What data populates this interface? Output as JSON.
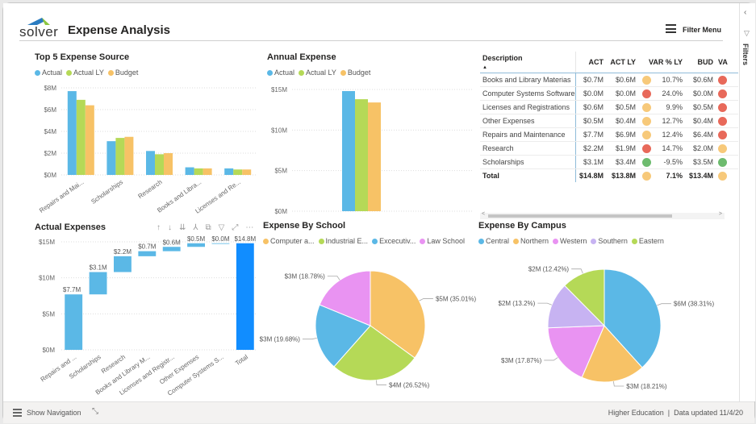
{
  "header": {
    "logo_text": "solver",
    "title": "Expense Analysis",
    "filter_menu_label": "Filter Menu"
  },
  "right_pane": {
    "label": "Filters",
    "collapse_icon": "chevron-left-icon",
    "filter_icon": "funnel-icon"
  },
  "footer": {
    "show_navigation_label": "Show Navigation",
    "status_left": "Higher Education",
    "status_right": "Data updated 11/4/20"
  },
  "colors": {
    "actual": "#5BB8E6",
    "actual_ly": "#B5D957",
    "budget": "#F7C266",
    "total": "#118DFF",
    "kpi_red": "#E8695A",
    "kpi_yellow": "#F7C97A",
    "kpi_green": "#6DBB6E"
  },
  "waterfall_toolbar_icons": [
    "arrow-up-icon",
    "arrow-down-icon",
    "double-arrow-down-icon",
    "expand-hierarchy-icon",
    "copy-icon",
    "filter-icon",
    "focus-mode-icon",
    "more-options-icon"
  ],
  "table": {
    "columns": [
      "Description",
      "ACT",
      "ACT LY",
      "VAR % LY",
      "BUD",
      "VA"
    ],
    "sort_indicator": "▲",
    "rows": [
      {
        "desc": "Books and Library Materias",
        "act": "$0.7M",
        "act_ly": "$0.6M",
        "var_kpi": "yellow",
        "var": "10.7%",
        "bud": "$0.6M",
        "va_kpi": "red"
      },
      {
        "desc": "Computer Systems Software",
        "act": "$0.0M",
        "act_ly": "$0.0M",
        "var_kpi": "red",
        "var": "24.0%",
        "bud": "$0.0M",
        "va_kpi": "red"
      },
      {
        "desc": "Licenses and Registrations",
        "act": "$0.6M",
        "act_ly": "$0.5M",
        "var_kpi": "yellow",
        "var": "9.9%",
        "bud": "$0.5M",
        "va_kpi": "red"
      },
      {
        "desc": "Other Expenses",
        "act": "$0.5M",
        "act_ly": "$0.4M",
        "var_kpi": "yellow",
        "var": "12.7%",
        "bud": "$0.4M",
        "va_kpi": "red"
      },
      {
        "desc": "Repairs and Maintenance",
        "act": "$7.7M",
        "act_ly": "$6.9M",
        "var_kpi": "yellow",
        "var": "12.4%",
        "bud": "$6.4M",
        "va_kpi": "red"
      },
      {
        "desc": "Research",
        "act": "$2.2M",
        "act_ly": "$1.9M",
        "var_kpi": "red",
        "var": "14.7%",
        "bud": "$2.0M",
        "va_kpi": "yellow"
      },
      {
        "desc": "Scholarships",
        "act": "$3.1M",
        "act_ly": "$3.4M",
        "var_kpi": "green",
        "var": "-9.5%",
        "bud": "$3.5M",
        "va_kpi": "green"
      }
    ],
    "total": {
      "desc": "Total",
      "act": "$14.8M",
      "act_ly": "$13.8M",
      "var_kpi": "yellow",
      "var": "7.1%",
      "bud": "$13.4M",
      "va_kpi": "yellow"
    }
  },
  "chart_data": [
    {
      "id": "top5",
      "type": "bar",
      "title": "Top 5 Expense Source",
      "legend": [
        "Actual",
        "Actual LY",
        "Budget"
      ],
      "legend_position": "top-left",
      "categories": [
        "Repairs and Mai...",
        "Scholarships",
        "Research",
        "Books and Libra...",
        "Licenses and Re..."
      ],
      "series": [
        {
          "name": "Actual",
          "values": [
            7.7,
            3.1,
            2.2,
            0.7,
            0.6
          ]
        },
        {
          "name": "Actual LY",
          "values": [
            6.9,
            3.4,
            1.9,
            0.6,
            0.5
          ]
        },
        {
          "name": "Budget",
          "values": [
            6.4,
            3.5,
            2.0,
            0.6,
            0.5
          ]
        }
      ],
      "yticks": [
        "$0M",
        "$2M",
        "$4M",
        "$6M",
        "$8M"
      ],
      "ylim": [
        0,
        8
      ],
      "grid": true
    },
    {
      "id": "annual",
      "type": "bar",
      "title": "Annual Expense",
      "legend": [
        "Actual",
        "Actual LY",
        "Budget"
      ],
      "legend_position": "top-left",
      "categories": [
        ""
      ],
      "series": [
        {
          "name": "Actual",
          "values": [
            14.8
          ]
        },
        {
          "name": "Actual LY",
          "values": [
            13.8
          ]
        },
        {
          "name": "Budget",
          "values": [
            13.4
          ]
        }
      ],
      "yticks": [
        "$0M",
        "$5M",
        "$10M",
        "$15M"
      ],
      "ylim": [
        0,
        15
      ],
      "grid": true
    },
    {
      "id": "waterfall",
      "type": "bar",
      "subtype": "waterfall",
      "title": "Actual Expenses",
      "categories": [
        "Repairs and ...",
        "Scholarships",
        "Research",
        "Books and Library M...",
        "Licenses and Registr...",
        "Other Expenses",
        "Computer Systems S...",
        "Total"
      ],
      "values": [
        7.7,
        3.1,
        2.2,
        0.7,
        0.6,
        0.5,
        0.0,
        14.8
      ],
      "labels": [
        "$7.7M",
        "$3.1M",
        "$2.2M",
        "$0.7M",
        "$0.6M",
        "$0.5M",
        "$0.0M",
        "$14.8M"
      ],
      "yticks": [
        "$0M",
        "$5M",
        "$10M",
        "$15M"
      ],
      "ylim": [
        0,
        15
      ],
      "grid": true
    },
    {
      "id": "school",
      "type": "pie",
      "title": "Expense By School",
      "legend": [
        "Computer a...",
        "Industrial E...",
        "Excecutiv...",
        "Law School"
      ],
      "legend_position": "top-left",
      "slices": [
        {
          "name": "Computer a...",
          "value": 35.01,
          "label": "$5M (35.01%)",
          "color": "#F7C266"
        },
        {
          "name": "Industrial E...",
          "value": 26.52,
          "label": "$4M (26.52%)",
          "color": "#B5D957"
        },
        {
          "name": "Excecutiv...",
          "value": 19.68,
          "label": "$3M (19.68%)",
          "color": "#5BB8E6"
        },
        {
          "name": "Law School",
          "value": 18.78,
          "label": "$3M (18.78%)",
          "color": "#E993F2"
        }
      ]
    },
    {
      "id": "campus",
      "type": "pie",
      "title": "Expense By Campus",
      "legend": [
        "Central",
        "Northern",
        "Western",
        "Southern",
        "Eastern"
      ],
      "legend_position": "top-left",
      "slices": [
        {
          "name": "Central",
          "value": 38.31,
          "label": "$6M (38.31%)",
          "color": "#5BB8E6"
        },
        {
          "name": "Northern",
          "value": 18.21,
          "label": "$3M (18.21%)",
          "color": "#F7C266"
        },
        {
          "name": "Western",
          "value": 17.87,
          "label": "$3M (17.87%)",
          "color": "#E993F2"
        },
        {
          "name": "Southern",
          "value": 13.2,
          "label": "$2M (13.2%)",
          "color": "#C7B3F2"
        },
        {
          "name": "Eastern",
          "value": 12.42,
          "label": "$2M (12.42%)",
          "color": "#B5D957"
        }
      ]
    }
  ]
}
